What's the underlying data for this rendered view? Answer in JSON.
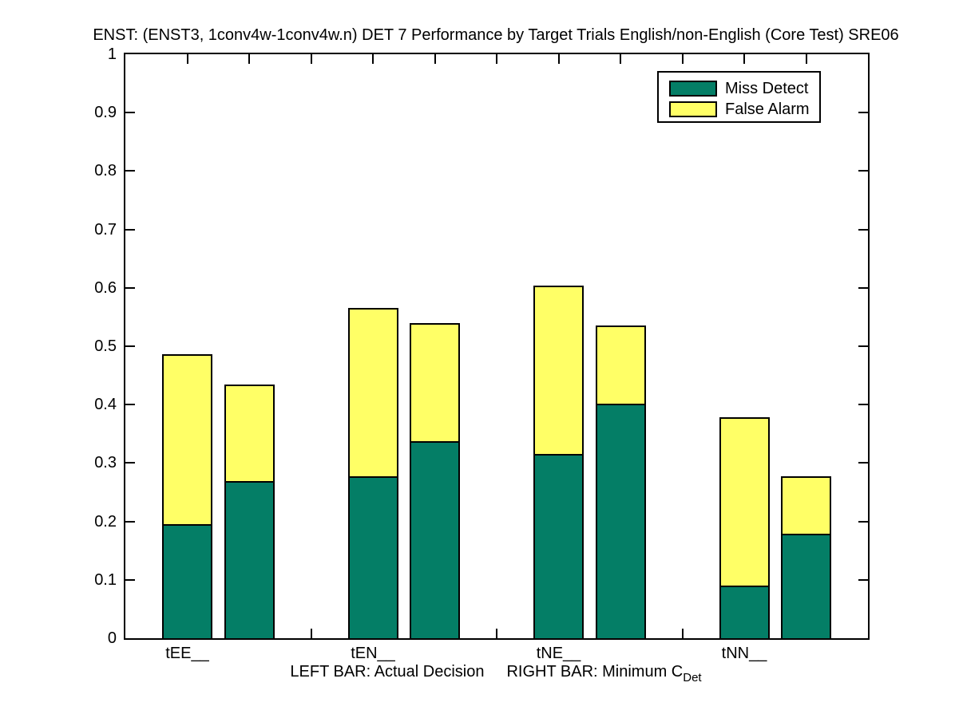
{
  "chart_data": {
    "type": "bar",
    "stacked": true,
    "title": "ENST: (ENST3, 1conv4w-1conv4w.n) DET 7 Performance by Target Trials English/non-English (Core Test) SRE06",
    "categories": [
      "tEE__",
      "tEN__",
      "tNE__",
      "tNN__"
    ],
    "bar_pair_meaning": {
      "left": "Actual Decision",
      "right": "Minimum CDet"
    },
    "legend": [
      "Miss Detect",
      "False Alarm"
    ],
    "legend_position": "top-right",
    "colors": {
      "miss_detect": "#047e66",
      "false_alarm": "#ffff66",
      "outline": "#000000"
    },
    "ylim": [
      0,
      1
    ],
    "yticks": [
      0,
      0.1,
      0.2,
      0.3,
      0.4,
      0.5,
      0.6,
      0.7,
      0.8,
      0.9,
      1
    ],
    "grid": false,
    "xlabel_parts": {
      "left": "LEFT BAR: Actual Decision",
      "right": "RIGHT BAR: Minimum C",
      "subscript": "Det"
    },
    "groups": [
      {
        "category": "tEE__",
        "actual": {
          "miss_detect": 0.196,
          "false_alarm": 0.29
        },
        "minimum_cdet": {
          "miss_detect": 0.269,
          "false_alarm": 0.166
        }
      },
      {
        "category": "tEN__",
        "actual": {
          "miss_detect": 0.277,
          "false_alarm": 0.289
        },
        "minimum_cdet": {
          "miss_detect": 0.337,
          "false_alarm": 0.202
        }
      },
      {
        "category": "tNE__",
        "actual": {
          "miss_detect": 0.315,
          "false_alarm": 0.289
        },
        "minimum_cdet": {
          "miss_detect": 0.402,
          "false_alarm": 0.134
        }
      },
      {
        "category": "tNN__",
        "actual": {
          "miss_detect": 0.09,
          "false_alarm": 0.289
        },
        "minimum_cdet": {
          "miss_detect": 0.179,
          "false_alarm": 0.099
        }
      }
    ]
  }
}
